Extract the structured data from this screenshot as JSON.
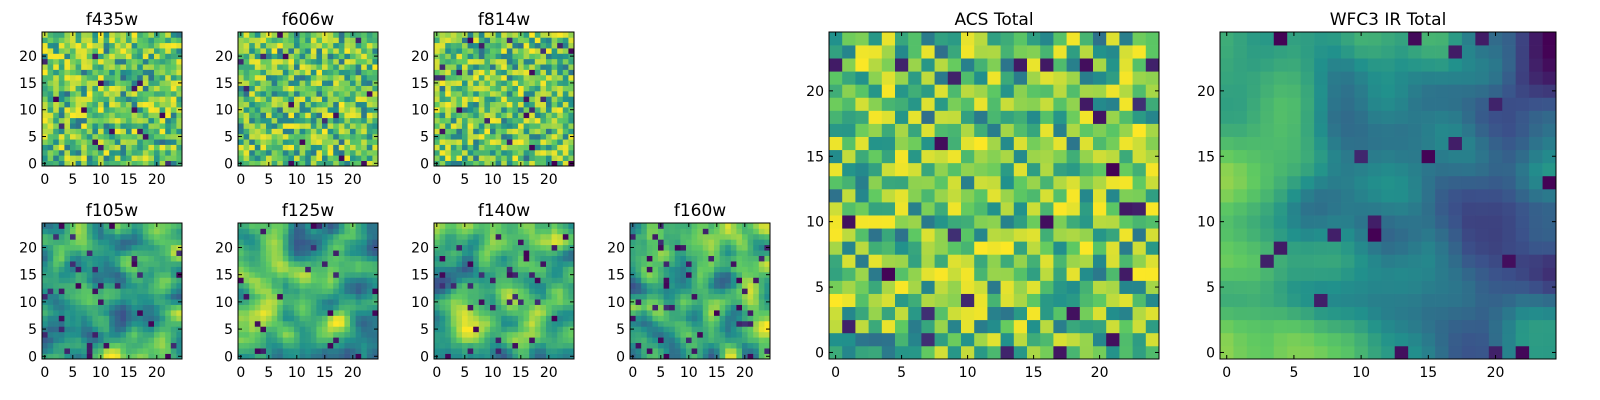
{
  "figure": {
    "colormap": "viridis",
    "colors": [
      "#440154",
      "#3b528b",
      "#21918c",
      "#5ec962",
      "#fde725"
    ]
  },
  "chart_data": [
    {
      "id": "f435w",
      "type": "heatmap",
      "title": "f435w",
      "grid_size": 25,
      "xlim": [
        0,
        24
      ],
      "ylim": [
        0,
        24
      ],
      "xticks": [
        "0",
        "5",
        "10",
        "15",
        "20"
      ],
      "yticks": [
        "0",
        "5",
        "10",
        "15",
        "20"
      ],
      "texture": "noise",
      "seed": 11,
      "dark_fraction": 0.03
    },
    {
      "id": "f606w",
      "type": "heatmap",
      "title": "f606w",
      "grid_size": 25,
      "xlim": [
        0,
        24
      ],
      "ylim": [
        0,
        24
      ],
      "xticks": [
        "0",
        "5",
        "10",
        "15",
        "20"
      ],
      "yticks": [
        "0",
        "5",
        "10",
        "15",
        "20"
      ],
      "texture": "noise",
      "seed": 23,
      "dark_fraction": 0.02
    },
    {
      "id": "f814w",
      "type": "heatmap",
      "title": "f814w",
      "grid_size": 25,
      "xlim": [
        0,
        24
      ],
      "ylim": [
        0,
        24
      ],
      "xticks": [
        "0",
        "5",
        "10",
        "15",
        "20"
      ],
      "yticks": [
        "0",
        "5",
        "10",
        "15",
        "20"
      ],
      "texture": "noise",
      "seed": 37,
      "dark_fraction": 0.03
    },
    {
      "id": "f105w",
      "type": "heatmap",
      "title": "f105w",
      "grid_size": 25,
      "xlim": [
        0,
        24
      ],
      "ylim": [
        0,
        24
      ],
      "xticks": [
        "0",
        "5",
        "10",
        "15",
        "20"
      ],
      "yticks": [
        "0",
        "5",
        "10",
        "15",
        "20"
      ],
      "texture": "smooth",
      "seed": 41,
      "dark_fraction": 0.05
    },
    {
      "id": "f125w",
      "type": "heatmap",
      "title": "f125w",
      "grid_size": 25,
      "xlim": [
        0,
        24
      ],
      "ylim": [
        0,
        24
      ],
      "xticks": [
        "0",
        "5",
        "10",
        "15",
        "20"
      ],
      "yticks": [
        "0",
        "5",
        "10",
        "15",
        "20"
      ],
      "texture": "smooth",
      "seed": 53,
      "dark_fraction": 0.04
    },
    {
      "id": "f140w",
      "type": "heatmap",
      "title": "f140w",
      "grid_size": 25,
      "xlim": [
        0,
        24
      ],
      "ylim": [
        0,
        24
      ],
      "xticks": [
        "0",
        "5",
        "10",
        "15",
        "20"
      ],
      "yticks": [
        "0",
        "5",
        "10",
        "15",
        "20"
      ],
      "texture": "smooth",
      "seed": 67,
      "dark_fraction": 0.06
    },
    {
      "id": "f160w",
      "type": "heatmap",
      "title": "f160w",
      "grid_size": 25,
      "xlim": [
        0,
        24
      ],
      "ylim": [
        0,
        24
      ],
      "xticks": [
        "0",
        "5",
        "10",
        "15",
        "20"
      ],
      "yticks": [
        "0",
        "5",
        "10",
        "15",
        "20"
      ],
      "texture": "smooth",
      "seed": 79,
      "dark_fraction": 0.06
    },
    {
      "id": "acs_total",
      "type": "heatmap",
      "title": "ACS Total",
      "grid_size": 25,
      "xlim": [
        0,
        24
      ],
      "ylim": [
        0,
        24
      ],
      "xticks": [
        "0",
        "5",
        "10",
        "15",
        "20"
      ],
      "yticks": [
        "0",
        "5",
        "10",
        "15",
        "20"
      ],
      "texture": "noise",
      "seed": 97,
      "dark_fraction": 0.03
    },
    {
      "id": "wfc3_ir_total",
      "type": "heatmap",
      "title": "WFC3 IR Total",
      "grid_size": 25,
      "xlim": [
        0,
        24
      ],
      "ylim": [
        0,
        24
      ],
      "xticks": [
        "0",
        "5",
        "10",
        "15",
        "20"
      ],
      "yticks": [
        "0",
        "5",
        "10",
        "15",
        "20"
      ],
      "texture": "gradient",
      "seed": 103,
      "dark_fraction": 0.04
    }
  ]
}
